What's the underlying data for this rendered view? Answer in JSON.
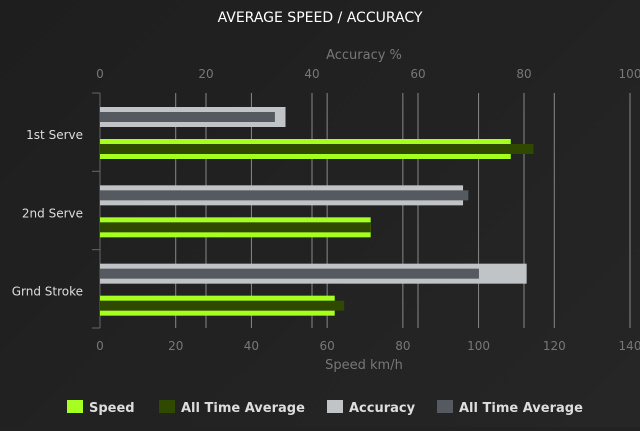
{
  "chart_data": {
    "type": "bar",
    "orientation": "horizontal",
    "title": "AVERAGE SPEED / ACCURACY",
    "categories": [
      "1st Serve",
      "2nd Serve",
      "Grnd Stroke"
    ],
    "top_axis": {
      "label": "Accuracy %",
      "range": [
        0,
        100
      ],
      "ticks": [
        0,
        20,
        40,
        60,
        80,
        100
      ]
    },
    "bottom_axis": {
      "label": "Speed km/h",
      "range": [
        0,
        140
      ],
      "ticks": [
        0,
        20,
        40,
        60,
        80,
        100,
        120,
        140
      ]
    },
    "grid": true,
    "legend_position": "bottom",
    "series": [
      {
        "name": "Speed",
        "axis": "bottom",
        "color": "#a6ff1e",
        "values": [
          108.5,
          71.5,
          62
        ]
      },
      {
        "name": "All Time Average",
        "axis": "bottom",
        "color": "#2f4a00",
        "values": [
          114.5,
          71.5,
          64.5
        ]
      },
      {
        "name": "Accuracy",
        "axis": "top",
        "color": "#c0c4c6",
        "values": [
          35,
          68.5,
          80.5
        ]
      },
      {
        "name": "All Time Average",
        "axis": "top",
        "color": "#555a60",
        "values": [
          33,
          69.5,
          71.5
        ]
      }
    ]
  }
}
